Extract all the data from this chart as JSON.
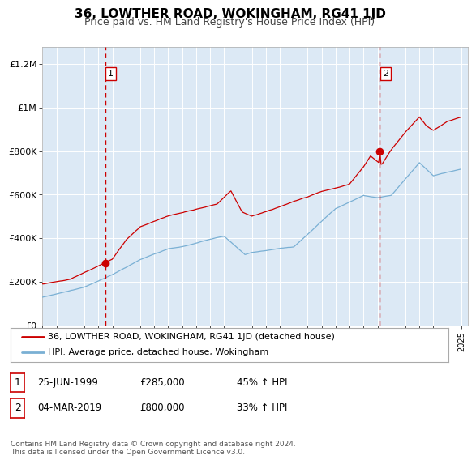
{
  "title": "36, LOWTHER ROAD, WOKINGHAM, RG41 1JD",
  "subtitle": "Price paid vs. HM Land Registry's House Price Index (HPI)",
  "plot_bg_color": "#dce9f5",
  "grid_color": "#ffffff",
  "red_line_color": "#cc0000",
  "blue_line_color": "#7ab0d4",
  "marker_color": "#cc0000",
  "vline_color": "#cc0000",
  "yticks": [
    0,
    200000,
    400000,
    600000,
    800000,
    1000000,
    1200000
  ],
  "ytick_labels": [
    "£0",
    "£200K",
    "£400K",
    "£600K",
    "£800K",
    "£1M",
    "£1.2M"
  ],
  "transaction1_date": 1999.48,
  "transaction1_price": 285000,
  "transaction2_date": 2019.17,
  "transaction2_price": 800000,
  "legend_red": "36, LOWTHER ROAD, WOKINGHAM, RG41 1JD (detached house)",
  "legend_blue": "HPI: Average price, detached house, Wokingham",
  "note1_date": "25-JUN-1999",
  "note1_price": "£285,000",
  "note1_hpi": "45% ↑ HPI",
  "note2_date": "04-MAR-2019",
  "note2_price": "£800,000",
  "note2_hpi": "33% ↑ HPI",
  "footer": "Contains HM Land Registry data © Crown copyright and database right 2024.\nThis data is licensed under the Open Government Licence v3.0."
}
